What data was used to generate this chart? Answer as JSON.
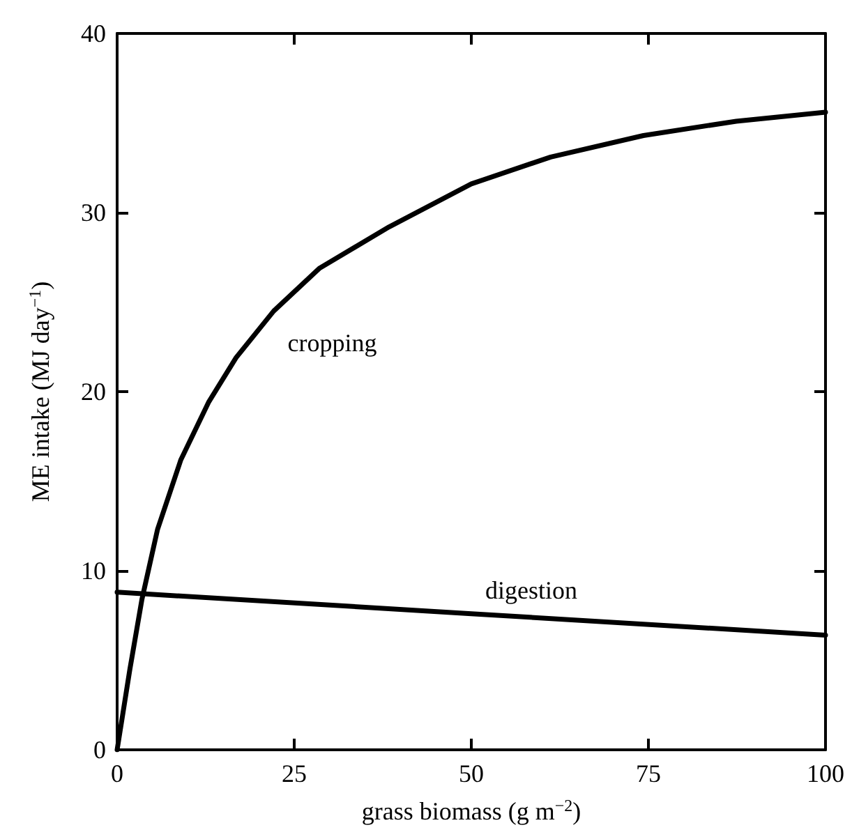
{
  "chart_data": {
    "type": "line",
    "xlabel": "grass biomass (g m$^{−2}$)",
    "ylabel": "ME intake (MJ day$^{−1}$)",
    "xlim": [
      0,
      100
    ],
    "ylim": [
      0,
      40
    ],
    "xticks": [
      0,
      25,
      50,
      75,
      100
    ],
    "yticks": [
      0,
      10,
      20,
      30,
      40
    ],
    "grid": false,
    "legend": false,
    "marker": "none",
    "line_style": "solid",
    "series": [
      {
        "name": "cropping",
        "color": "#000000",
        "x": [
          0,
          1.8,
          3.5,
          5.7,
          9,
          12.9,
          16.8,
          22.1,
          28.6,
          38.4,
          50,
          61.2,
          74.3,
          87.4,
          100
        ],
        "values": [
          0,
          4.5,
          8.4,
          12.3,
          16.2,
          19.4,
          21.9,
          24.5,
          26.9,
          29.2,
          31.6,
          33.1,
          34.3,
          35.1,
          35.6
        ]
      },
      {
        "name": "digestion",
        "color": "#000000",
        "x": [
          0,
          50,
          100
        ],
        "values": [
          8.8,
          7.6,
          6.4
        ]
      }
    ]
  }
}
